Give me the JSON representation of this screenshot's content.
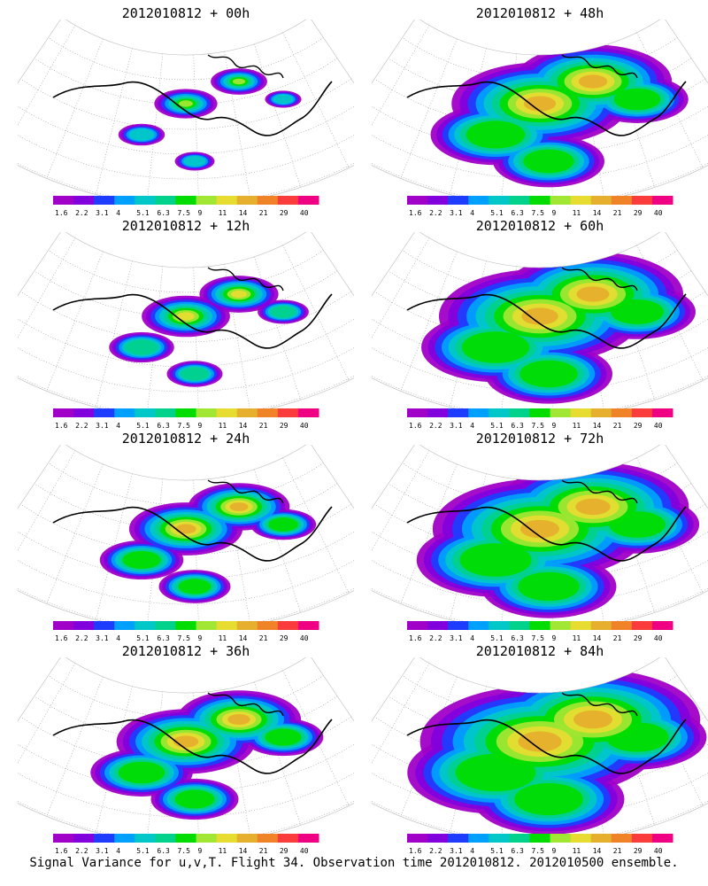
{
  "chart_data": {
    "type": "heatmap",
    "caption": "Signal Variance for u,v,T. Flight 34. Observation time 2012010812. 2012010500 ensemble.",
    "colorbar": {
      "labels": [
        "1.6",
        "2.2",
        "3.1",
        "4",
        "5.1",
        "6.3",
        "7.5",
        "9",
        "11",
        "14",
        "21",
        "29",
        "40"
      ],
      "colors": [
        "#a000c8",
        "#8200dc",
        "#1e3cff",
        "#00a0ff",
        "#00c8c8",
        "#00d28c",
        "#00dc00",
        "#a0e632",
        "#e6dc32",
        "#e6af2d",
        "#f08228",
        "#fa3c3c",
        "#f00082"
      ]
    },
    "panels": [
      {
        "id": "p00",
        "title": "2012010812 + 00h",
        "extent": 0.25,
        "max_level": 7
      },
      {
        "id": "p48",
        "title": "2012010812 + 48h",
        "extent": 0.7,
        "max_level": 9
      },
      {
        "id": "p12",
        "title": "2012010812 + 12h",
        "extent": 0.35,
        "max_level": 8
      },
      {
        "id": "p60",
        "title": "2012010812 + 60h",
        "extent": 0.8,
        "max_level": 9
      },
      {
        "id": "p24",
        "title": "2012010812 + 24h",
        "extent": 0.45,
        "max_level": 9
      },
      {
        "id": "p72",
        "title": "2012010812 + 72h",
        "extent": 0.85,
        "max_level": 9
      },
      {
        "id": "p36",
        "title": "2012010812 + 36h",
        "extent": 0.55,
        "max_level": 9
      },
      {
        "id": "p84",
        "title": "2012010812 + 84h",
        "extent": 0.95,
        "max_level": 9
      }
    ]
  }
}
